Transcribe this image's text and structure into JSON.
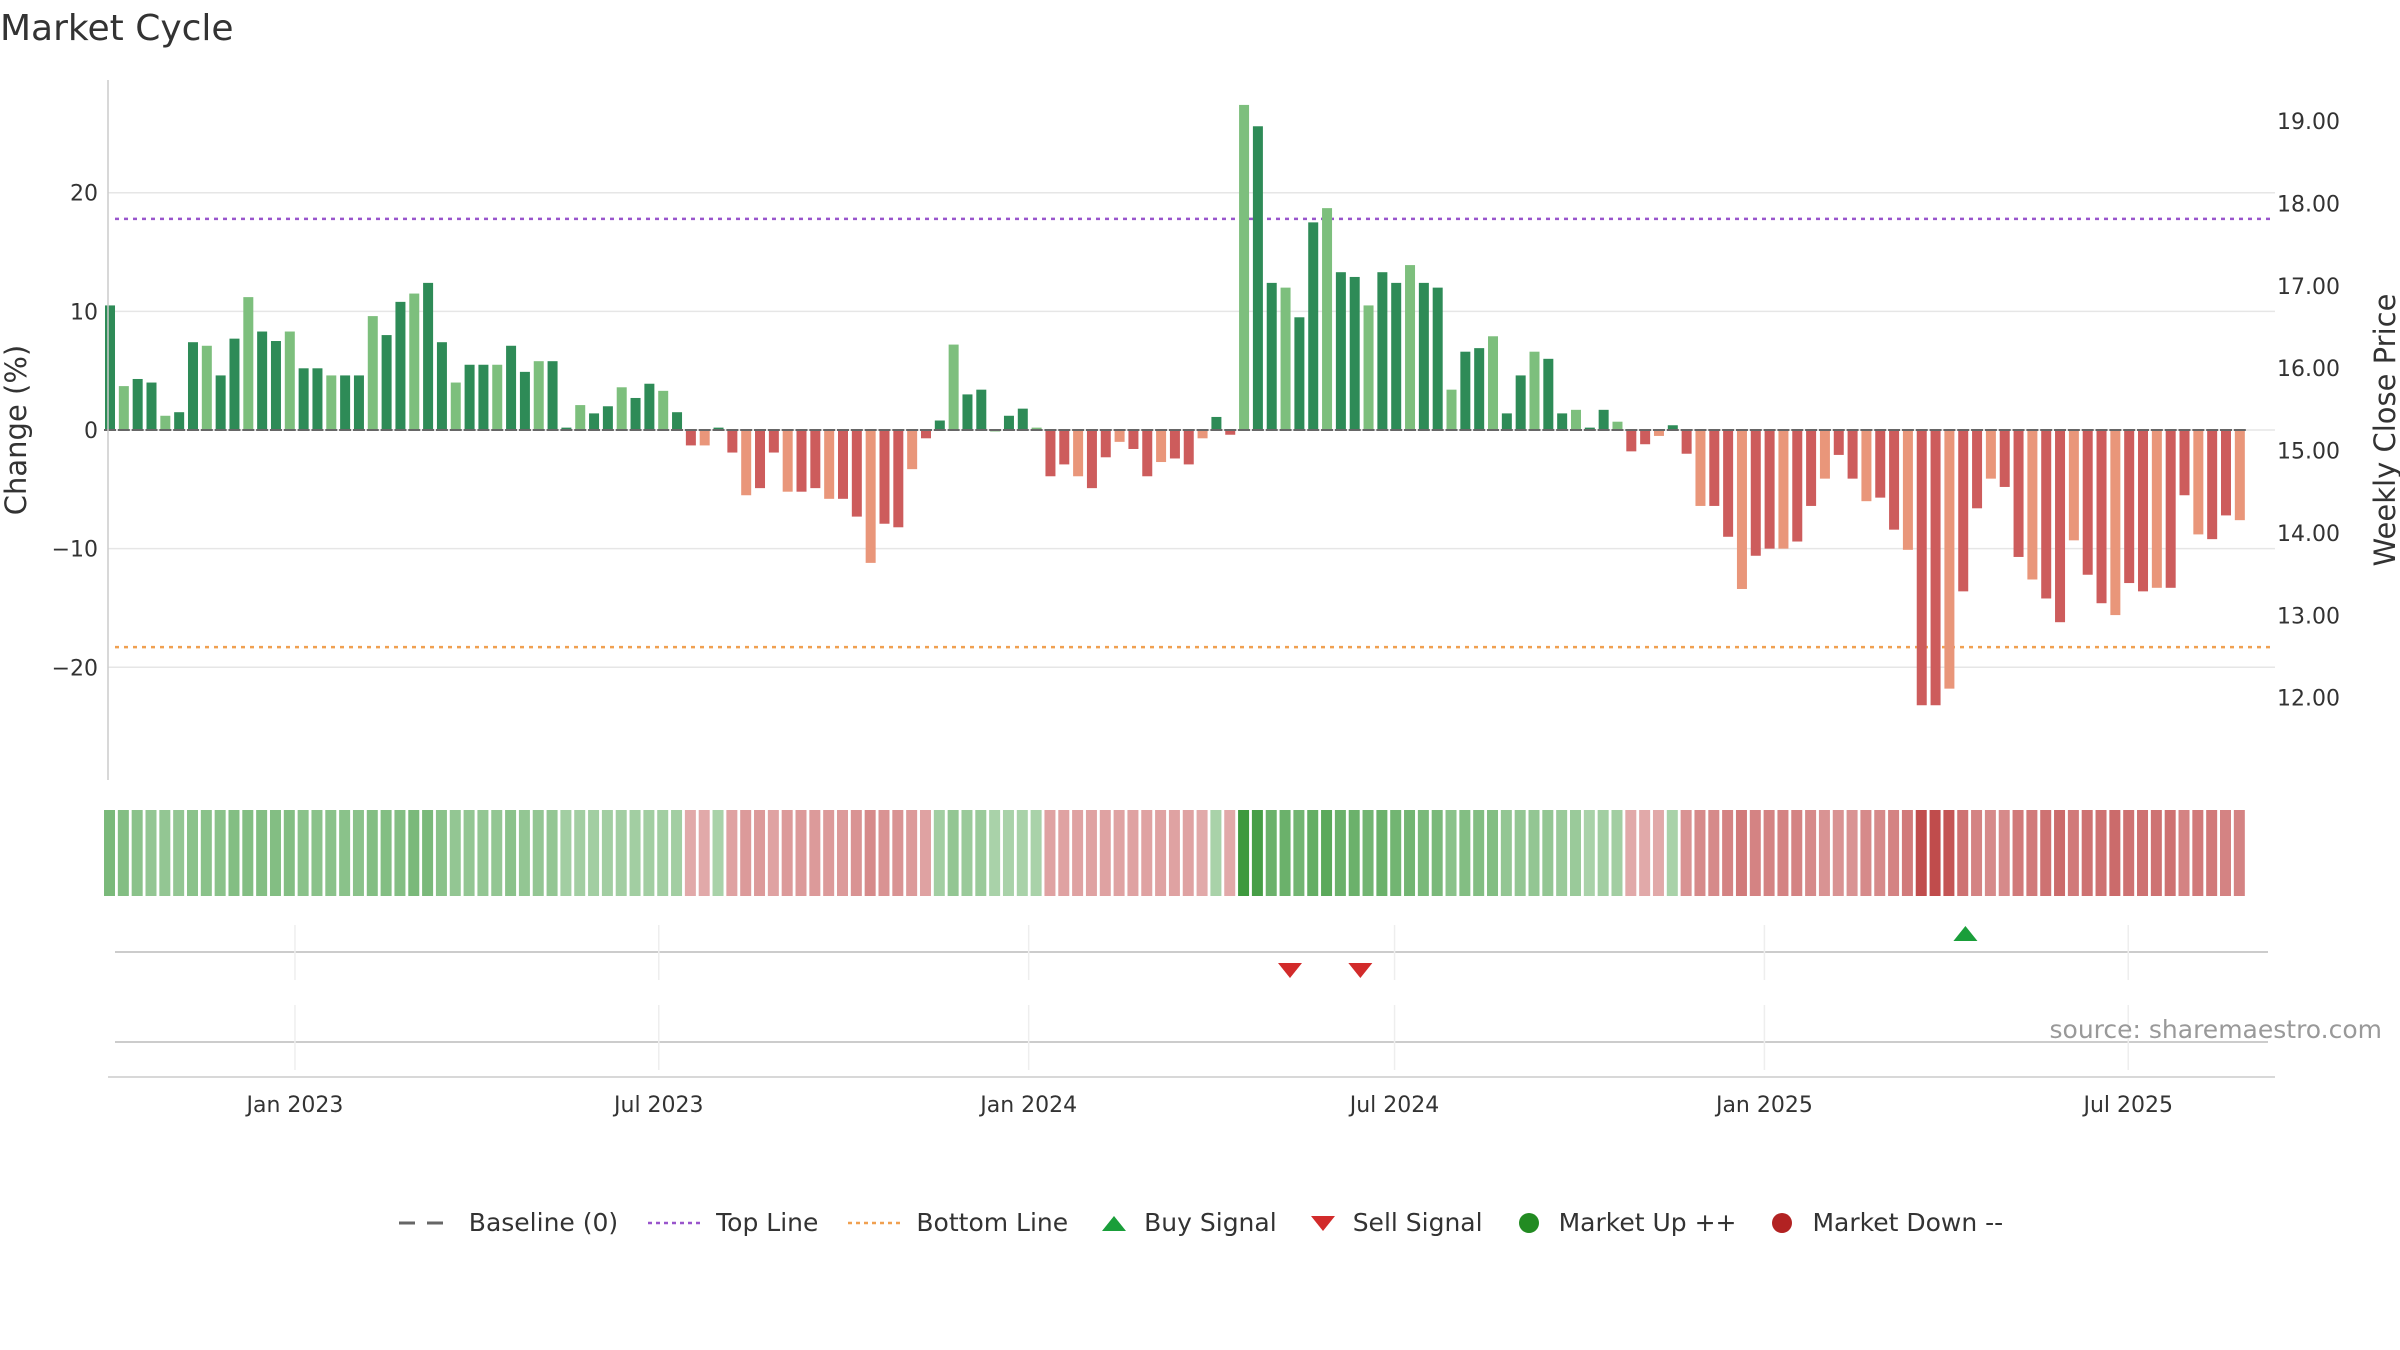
{
  "source": "source: sharemaestro.com",
  "colors": {
    "up_strong": "#2e8b57",
    "up_light": "#7dbf7d",
    "down_strong": "#cd5c5c",
    "down_light": "#e9967a",
    "top_line": "#9955cc",
    "bottom_line": "#f0a050",
    "buy": "#1a9e3a",
    "sell": "#d22b2b",
    "mkt_up": "#228b22",
    "mkt_down": "#b22222",
    "baseline": "#666666"
  },
  "legend": [
    {
      "key": "baseline",
      "label": "Baseline (0)",
      "icon": "dash-line-icon"
    },
    {
      "key": "top",
      "label": "Top Line",
      "icon": "dotted-line-icon"
    },
    {
      "key": "bottom",
      "label": "Bottom Line",
      "icon": "dotted-line-icon"
    },
    {
      "key": "buy",
      "label": "Buy Signal",
      "icon": "triangle-up-icon"
    },
    {
      "key": "sell",
      "label": "Sell Signal",
      "icon": "triangle-down-icon"
    },
    {
      "key": "mup",
      "label": "Market Up ++",
      "icon": "circle-icon"
    },
    {
      "key": "mdown",
      "label": "Market Down --",
      "icon": "circle-icon"
    }
  ],
  "chart_data": {
    "type": "bar",
    "title": "Market Cycle",
    "ylabel": "Change (%)",
    "y2label": "Weekly Close Price",
    "ylim": [
      -29.5,
      29.5
    ],
    "y2lim": [
      11.0,
      19.5
    ],
    "yticks": [
      20,
      10,
      0,
      -10,
      -20
    ],
    "ytick_labels": [
      "20",
      "10",
      "0",
      "−10",
      "−20"
    ],
    "y2ticks": [
      19,
      18,
      17,
      16,
      15,
      14,
      13,
      12
    ],
    "y2tick_labels": [
      "19.00",
      "18.00",
      "17.00",
      "16.00",
      "15.00",
      "14.00",
      "13.00",
      "12.00"
    ],
    "top_line": 17.8,
    "bottom_line": -18.3,
    "x_start": "2022-09-30",
    "x_end": "2025-09-12",
    "xticks": [
      "2023-01-01",
      "2023-07-01",
      "2024-01-01",
      "2024-07-01",
      "2025-01-01",
      "2025-07-01"
    ],
    "xtick_labels": [
      "Jan 2023",
      "Jul 2023",
      "Jan 2024",
      "Jul 2024",
      "Jan 2025",
      "Jul 2025"
    ],
    "first_week": "2022-10-01",
    "values": [
      10.5,
      3.7,
      4.3,
      4.0,
      1.2,
      1.5,
      7.4,
      7.1,
      4.6,
      7.7,
      11.2,
      8.3,
      7.5,
      8.3,
      5.2,
      5.2,
      4.6,
      4.6,
      4.6,
      9.6,
      8.0,
      10.8,
      11.5,
      12.4,
      7.4,
      4.0,
      5.5,
      5.5,
      5.5,
      7.1,
      4.9,
      5.8,
      5.8,
      0.2,
      2.1,
      1.4,
      2.0,
      3.6,
      2.7,
      3.9,
      3.3,
      1.5,
      -1.3,
      -1.3,
      0.2,
      -1.9,
      -5.5,
      -4.9,
      -1.9,
      -5.2,
      -5.2,
      -4.9,
      -5.8,
      -5.8,
      -7.3,
      -11.2,
      -7.9,
      -8.2,
      -3.3,
      -0.7,
      0.8,
      7.2,
      3.0,
      3.4,
      0.0,
      1.2,
      1.8,
      0.2,
      -3.9,
      -2.9,
      -3.9,
      -4.9,
      -2.3,
      -1.0,
      -1.6,
      -3.9,
      -2.7,
      -2.4,
      -2.9,
      -0.7,
      1.1,
      -0.4,
      27.4,
      25.6,
      12.4,
      12.0,
      9.5,
      17.5,
      18.7,
      13.3,
      12.9,
      10.5,
      13.3,
      12.4,
      13.9,
      12.4,
      12.0,
      3.4,
      6.6,
      6.9,
      7.9,
      1.4,
      4.6,
      6.6,
      6.0,
      1.4,
      1.7,
      0.2,
      1.7,
      0.7,
      -1.8,
      -1.2,
      -0.5,
      0.4,
      -2.0,
      -6.4,
      -6.4,
      -9.0,
      -13.4,
      -10.6,
      -10.0,
      -10.0,
      -9.4,
      -6.4,
      -4.1,
      -2.1,
      -4.1,
      -6.0,
      -5.7,
      -8.4,
      -10.1,
      -23.2,
      -23.2,
      -21.8,
      -13.6,
      -6.6,
      -4.1,
      -4.8,
      -10.7,
      -12.6,
      -14.2,
      -16.2,
      -9.3,
      -12.2,
      -14.6,
      -15.6,
      -12.9,
      -13.6,
      -13.3,
      -13.3,
      -5.5,
      -8.8,
      -9.2,
      -7.2,
      -7.6
    ],
    "shade": [
      0.6,
      0.55,
      0.5,
      0.45,
      0.45,
      0.45,
      0.5,
      0.5,
      0.5,
      0.55,
      0.55,
      0.55,
      0.55,
      0.55,
      0.5,
      0.5,
      0.5,
      0.5,
      0.5,
      0.55,
      0.55,
      0.55,
      0.6,
      0.6,
      0.5,
      0.45,
      0.45,
      0.45,
      0.45,
      0.5,
      0.45,
      0.45,
      0.45,
      0.35,
      0.35,
      0.35,
      0.35,
      0.35,
      0.35,
      0.35,
      0.35,
      0.35,
      0.3,
      0.3,
      0.3,
      0.35,
      0.4,
      0.4,
      0.35,
      0.4,
      0.4,
      0.4,
      0.4,
      0.4,
      0.45,
      0.5,
      0.45,
      0.45,
      0.4,
      0.35,
      0.35,
      0.45,
      0.4,
      0.4,
      0.3,
      0.3,
      0.3,
      0.3,
      0.35,
      0.35,
      0.35,
      0.35,
      0.35,
      0.35,
      0.35,
      0.35,
      0.35,
      0.35,
      0.35,
      0.3,
      0.3,
      0.3,
      1.0,
      0.95,
      0.7,
      0.7,
      0.65,
      0.75,
      0.8,
      0.7,
      0.7,
      0.65,
      0.7,
      0.65,
      0.65,
      0.6,
      0.6,
      0.5,
      0.55,
      0.55,
      0.55,
      0.45,
      0.45,
      0.45,
      0.45,
      0.4,
      0.4,
      0.3,
      0.35,
      0.35,
      0.3,
      0.3,
      0.3,
      0.3,
      0.45,
      0.5,
      0.5,
      0.55,
      0.6,
      0.55,
      0.55,
      0.55,
      0.55,
      0.5,
      0.45,
      0.45,
      0.45,
      0.5,
      0.5,
      0.55,
      0.6,
      0.9,
      0.9,
      0.85,
      0.65,
      0.55,
      0.5,
      0.5,
      0.6,
      0.6,
      0.65,
      0.7,
      0.6,
      0.65,
      0.65,
      0.7,
      0.65,
      0.65,
      0.65,
      0.65,
      0.55,
      0.6,
      0.6,
      0.55,
      0.55
    ],
    "buy_signals": [
      "2025-04-11"
    ],
    "sell_signals": [
      "2024-05-10",
      "2024-06-14"
    ]
  }
}
